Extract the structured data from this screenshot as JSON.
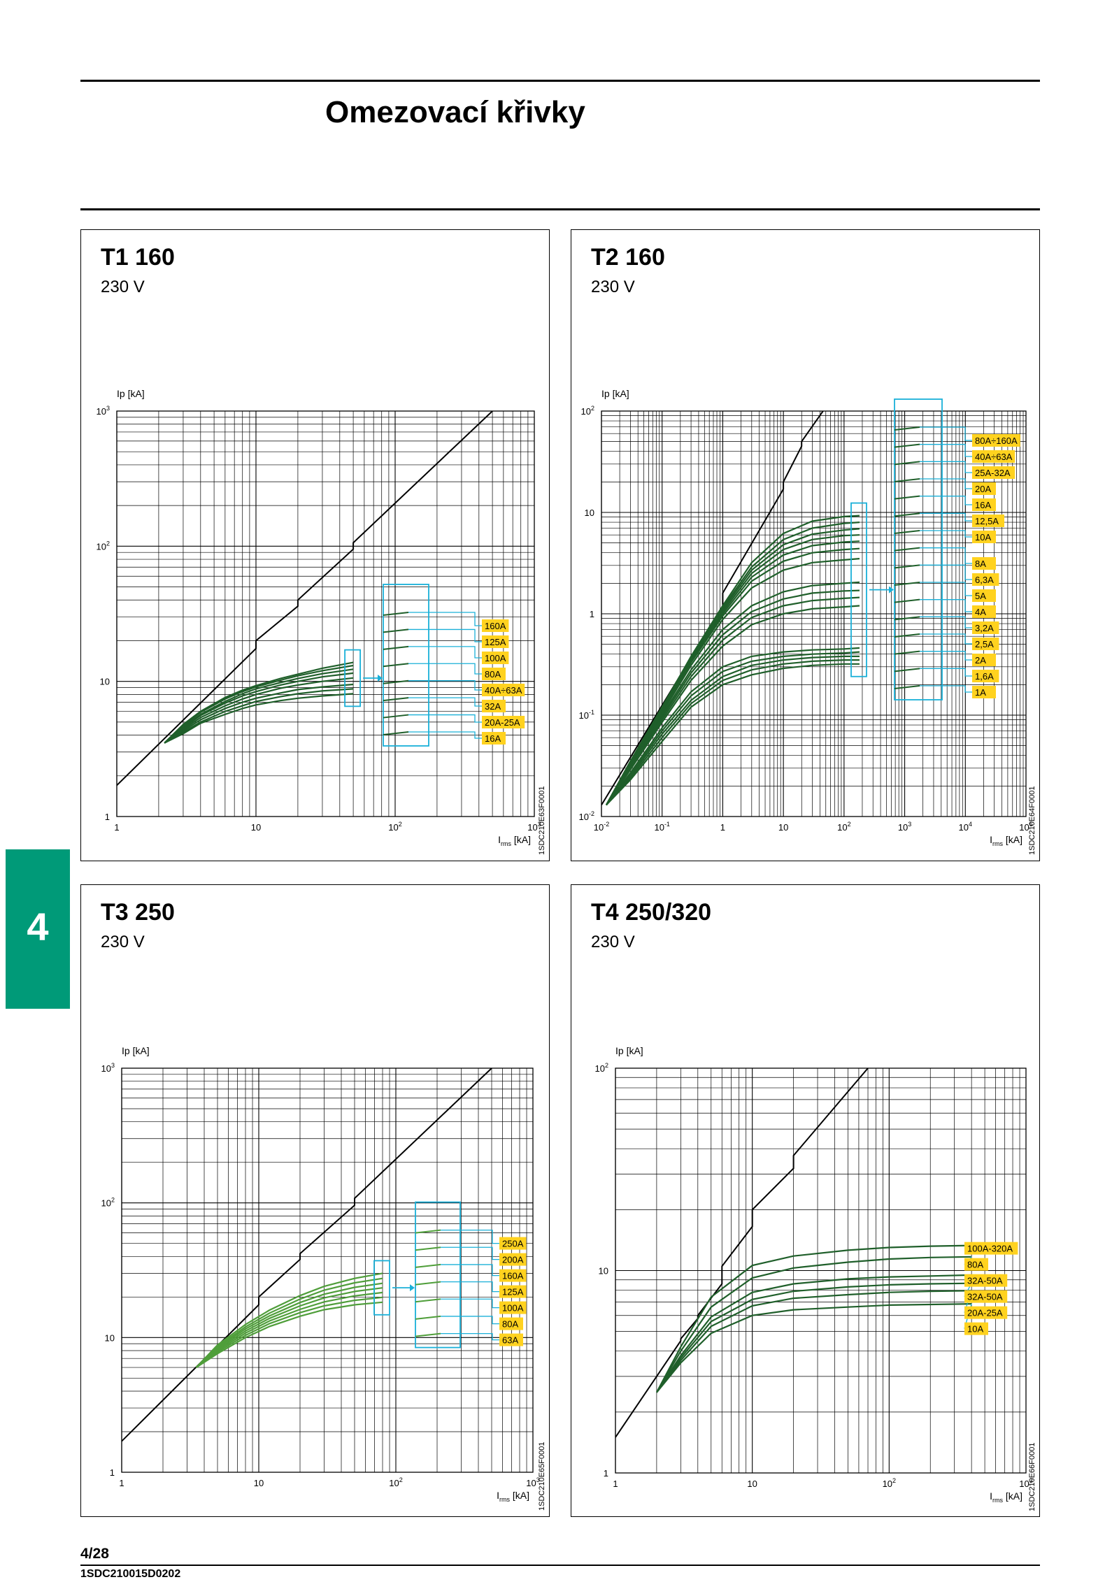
{
  "page": {
    "title": "Omezovací křivky",
    "side_tab": "4",
    "page_number": "4/28",
    "doc_code": "1SDC210015D0202"
  },
  "colors": {
    "tab": "#009a78",
    "curve_dark": "#1f5f2a",
    "curve_light": "#4f9e3a",
    "cyan": "#1ab0d8",
    "label_bg": "#ffd21f",
    "grid": "#000000"
  },
  "chart_data": [
    {
      "type": "line",
      "title": "T1 160",
      "subtitle": "230 V",
      "ylabel": "Ip [kA]",
      "xlabel_main": "I",
      "xlabel_sub": "rms",
      "xlabel_unit": " [kA]",
      "xscale": "log",
      "yscale": "log",
      "xlim": [
        1,
        1000
      ],
      "ylim": [
        1,
        1000
      ],
      "xticks": [
        {
          "v": 1,
          "b": "1"
        },
        {
          "v": 10,
          "b": "10"
        },
        {
          "v": 100,
          "b": "10",
          "e": "2"
        },
        {
          "v": 1000,
          "b": "10",
          "e": "3"
        }
      ],
      "yticks": [
        {
          "v": 1,
          "b": "1"
        },
        {
          "v": 10,
          "b": "10"
        },
        {
          "v": 100,
          "b": "10",
          "e": "2"
        },
        {
          "v": 1000,
          "b": "10",
          "e": "3"
        }
      ],
      "image_code": "1SDC210E63F0001",
      "limit_line": [
        [
          1,
          1.7
        ],
        [
          10,
          17.5
        ],
        [
          10,
          20
        ],
        [
          20,
          36
        ],
        [
          20,
          40
        ],
        [
          50,
          95
        ],
        [
          50,
          106
        ],
        [
          500,
          1000
        ]
      ],
      "curve_x": [
        2.2,
        3,
        4,
        6,
        8,
        10,
        15,
        20,
        30,
        50
      ],
      "curve_start": 3.5,
      "series": [
        {
          "name": "160A",
          "values": [
            3.5,
            4.8,
            6.0,
            7.6,
            8.6,
            9.3,
            10.5,
            11.3,
            12.5,
            13.8
          ],
          "color": "dark"
        },
        {
          "name": "125A",
          "values": [
            3.5,
            4.7,
            5.9,
            7.4,
            8.4,
            9.1,
            10.2,
            11.0,
            12.0,
            13.1
          ],
          "color": "dark"
        },
        {
          "name": "100A",
          "values": [
            3.5,
            4.6,
            5.7,
            7.1,
            8.1,
            8.8,
            9.8,
            10.5,
            11.4,
            12.3
          ],
          "color": "dark"
        },
        {
          "name": "80A",
          "values": [
            3.5,
            4.5,
            5.6,
            6.9,
            7.8,
            8.4,
            9.4,
            10.0,
            10.8,
            11.5
          ],
          "color": "dark"
        },
        {
          "name": "40A÷63A",
          "values": [
            3.5,
            4.4,
            5.4,
            6.6,
            7.4,
            8.0,
            8.9,
            9.4,
            10.0,
            10.6
          ],
          "color": "dark"
        },
        {
          "name": "32A",
          "values": [
            3.5,
            4.3,
            5.2,
            6.3,
            7.0,
            7.5,
            8.2,
            8.7,
            9.1,
            9.5
          ],
          "color": "dark"
        },
        {
          "name": "20A-25A",
          "values": [
            3.5,
            4.2,
            5.0,
            6.0,
            6.6,
            7.1,
            7.7,
            8.1,
            8.5,
            8.8
          ],
          "color": "dark"
        },
        {
          "name": "16A",
          "values": [
            3.5,
            4.1,
            4.9,
            5.7,
            6.3,
            6.7,
            7.2,
            7.5,
            7.8,
            8.1
          ],
          "color": "dark"
        }
      ]
    },
    {
      "type": "line",
      "title": "T2 160",
      "subtitle": "230 V",
      "ylabel": "Ip [kA]",
      "xlabel_main": "I",
      "xlabel_sub": "rms",
      "xlabel_unit": " [kA]",
      "xscale": "log",
      "yscale": "log",
      "xlim": [
        0.01,
        100000
      ],
      "ylim": [
        0.01,
        100
      ],
      "xticks": [
        {
          "v": 0.01,
          "b": "10",
          "e": "-2"
        },
        {
          "v": 0.1,
          "b": "10",
          "e": "-1"
        },
        {
          "v": 1,
          "b": "1"
        },
        {
          "v": 10,
          "b": "10"
        },
        {
          "v": 100,
          "b": "10",
          "e": "2"
        },
        {
          "v": 1000,
          "b": "10",
          "e": "3"
        },
        {
          "v": 10000,
          "b": "10",
          "e": "4"
        },
        {
          "v": 100000,
          "b": "10",
          "e": "5"
        }
      ],
      "yticks": [
        {
          "v": 0.01,
          "b": "10",
          "e": "-2"
        },
        {
          "v": 0.1,
          "b": "10",
          "e": "-1"
        },
        {
          "v": 1,
          "b": "1"
        },
        {
          "v": 10,
          "b": "10"
        },
        {
          "v": 100,
          "b": "10",
          "e": "2"
        }
      ],
      "image_code": "1SDC210E64F0001",
      "limit_line": [
        [
          0.01,
          0.013
        ],
        [
          1,
          1.2
        ],
        [
          1,
          1.6
        ],
        [
          10,
          17
        ],
        [
          10,
          20
        ],
        [
          20,
          45
        ],
        [
          20,
          50
        ],
        [
          45,
          100
        ]
      ],
      "curve_x": [
        0.012,
        0.03,
        0.1,
        0.3,
        1,
        3,
        10,
        30,
        100,
        180
      ],
      "curve_start": 0.013,
      "series": [
        {
          "name": "80A÷160A",
          "values": [
            0.013,
            0.035,
            0.12,
            0.38,
            1.2,
            3.2,
            6.2,
            8.2,
            9.1,
            9.3
          ],
          "color": "dark"
        },
        {
          "name": "40A÷63A",
          "values": [
            0.013,
            0.035,
            0.12,
            0.37,
            1.15,
            2.9,
            5.4,
            7.0,
            7.8,
            8.0
          ],
          "color": "dark"
        },
        {
          "name": "25A-32A",
          "values": [
            0.013,
            0.035,
            0.12,
            0.36,
            1.1,
            2.7,
            4.8,
            6.1,
            6.7,
            6.9
          ],
          "color": "dark"
        },
        {
          "name": "20A",
          "values": [
            0.013,
            0.034,
            0.115,
            0.35,
            1.05,
            2.5,
            4.3,
            5.4,
            5.9,
            6.0
          ],
          "color": "dark"
        },
        {
          "name": "16A",
          "values": [
            0.013,
            0.034,
            0.11,
            0.34,
            1.0,
            2.3,
            3.8,
            4.7,
            5.1,
            5.2
          ],
          "color": "dark"
        },
        {
          "name": "12,5A",
          "values": [
            0.013,
            0.033,
            0.11,
            0.33,
            0.95,
            2.1,
            3.3,
            4.0,
            4.3,
            4.4
          ],
          "color": "dark"
        },
        {
          "name": "10A",
          "values": [
            0.013,
            0.033,
            0.105,
            0.31,
            0.88,
            1.8,
            2.7,
            3.2,
            3.4,
            3.5
          ],
          "color": "dark"
        },
        {
          "name": "8A",
          "values": [
            0.013,
            0.032,
            0.1,
            0.28,
            0.7,
            1.2,
            1.65,
            1.9,
            2.0,
            2.05
          ],
          "color": "dark"
        },
        {
          "name": "6,3A",
          "values": [
            0.013,
            0.031,
            0.095,
            0.26,
            0.62,
            1.05,
            1.4,
            1.6,
            1.68,
            1.7
          ],
          "color": "dark"
        },
        {
          "name": "5A",
          "values": [
            0.013,
            0.03,
            0.09,
            0.24,
            0.55,
            0.92,
            1.2,
            1.35,
            1.42,
            1.45
          ],
          "color": "dark"
        },
        {
          "name": "4A",
          "values": [
            0.013,
            0.029,
            0.085,
            0.22,
            0.48,
            0.78,
            1.0,
            1.12,
            1.17,
            1.2
          ],
          "color": "dark"
        },
        {
          "name": "3,2A",
          "values": [
            0.013,
            0.027,
            0.075,
            0.17,
            0.3,
            0.38,
            0.42,
            0.44,
            0.45,
            0.46
          ],
          "color": "dark"
        },
        {
          "name": "2,5A",
          "values": [
            0.013,
            0.026,
            0.07,
            0.155,
            0.27,
            0.34,
            0.38,
            0.4,
            0.41,
            0.42
          ],
          "color": "dark"
        },
        {
          "name": "2A",
          "values": [
            0.013,
            0.025,
            0.065,
            0.14,
            0.24,
            0.31,
            0.35,
            0.37,
            0.38,
            0.38
          ],
          "color": "dark"
        },
        {
          "name": "1,6A",
          "values": [
            0.013,
            0.024,
            0.06,
            0.13,
            0.22,
            0.28,
            0.32,
            0.34,
            0.35,
            0.35
          ],
          "color": "dark"
        },
        {
          "name": "1A",
          "values": [
            0.013,
            0.023,
            0.055,
            0.12,
            0.2,
            0.25,
            0.29,
            0.31,
            0.32,
            0.32
          ],
          "color": "dark"
        }
      ]
    },
    {
      "type": "line",
      "title": "T3 250",
      "subtitle": "230 V",
      "ylabel": "Ip [kA]",
      "xlabel_main": "I",
      "xlabel_sub": "rms",
      "xlabel_unit": " [kA]",
      "xscale": "log",
      "yscale": "log",
      "xlim": [
        1,
        1000
      ],
      "ylim": [
        1,
        1000
      ],
      "xticks": [
        {
          "v": 1,
          "b": "1"
        },
        {
          "v": 10,
          "b": "10"
        },
        {
          "v": 100,
          "b": "10",
          "e": "2"
        },
        {
          "v": 1000,
          "b": "10",
          "e": "3"
        }
      ],
      "yticks": [
        {
          "v": 1,
          "b": "1"
        },
        {
          "v": 10,
          "b": "10"
        },
        {
          "v": 100,
          "b": "10",
          "e": "2"
        },
        {
          "v": 1000,
          "b": "10",
          "e": "3"
        }
      ],
      "image_code": "1SDC210E65F0001",
      "limit_line": [
        [
          1,
          1.7
        ],
        [
          10,
          17.5
        ],
        [
          10,
          20
        ],
        [
          20,
          38
        ],
        [
          20,
          42
        ],
        [
          50,
          96
        ],
        [
          50,
          108
        ],
        [
          500,
          1000
        ]
      ],
      "curve_x": [
        3.5,
        5,
        8,
        12,
        20,
        30,
        50,
        80
      ],
      "curve_start": 6,
      "series": [
        {
          "name": "250A",
          "values": [
            6,
            8.8,
            12.5,
            16,
            20.5,
            24,
            27.5,
            30
          ],
          "color": "light"
        },
        {
          "name": "200A",
          "values": [
            6,
            8.6,
            12,
            15.2,
            19.3,
            22.5,
            25.5,
            27.5
          ],
          "color": "light"
        },
        {
          "name": "160A",
          "values": [
            6,
            8.4,
            11.6,
            14.5,
            18.2,
            21,
            23.6,
            25.3
          ],
          "color": "light"
        },
        {
          "name": "125A",
          "values": [
            6,
            8.2,
            11.2,
            13.9,
            17.2,
            19.7,
            22,
            23.4
          ],
          "color": "light"
        },
        {
          "name": "100A",
          "values": [
            6,
            8.0,
            10.8,
            13.3,
            16.2,
            18.4,
            20.4,
            21.6
          ],
          "color": "light"
        },
        {
          "name": "80A",
          "values": [
            6,
            7.8,
            10.4,
            12.7,
            15.3,
            17.2,
            18.9,
            19.9
          ],
          "color": "light"
        },
        {
          "name": "63A",
          "values": [
            6,
            7.6,
            10.0,
            12.1,
            14.4,
            16.1,
            17.5,
            18.3
          ],
          "color": "light"
        }
      ]
    },
    {
      "type": "line",
      "title": "T4 250/320",
      "subtitle": "230 V",
      "ylabel": "Ip [kA]",
      "xlabel_main": "I",
      "xlabel_sub": "rms",
      "xlabel_unit": " [kA]",
      "xscale": "log",
      "yscale": "log",
      "xlim": [
        1,
        1000
      ],
      "ylim": [
        1,
        100
      ],
      "xticks": [
        {
          "v": 1,
          "b": "1"
        },
        {
          "v": 10,
          "b": "10"
        },
        {
          "v": 100,
          "b": "10",
          "e": "2"
        },
        {
          "v": 1000,
          "b": "10",
          "e": "3"
        }
      ],
      "yticks": [
        {
          "v": 1,
          "b": "1"
        },
        {
          "v": 10,
          "b": "10"
        },
        {
          "v": 100,
          "b": "10",
          "e": "2"
        }
      ],
      "image_code": "1SDC210E66F0001",
      "limit_line": [
        [
          1,
          1.5
        ],
        [
          3,
          4.5
        ],
        [
          3,
          4.6
        ],
        [
          4,
          5.8
        ],
        [
          4,
          6
        ],
        [
          6,
          8.6
        ],
        [
          6,
          10.5
        ],
        [
          10,
          16.5
        ],
        [
          10,
          20
        ],
        [
          20,
          32
        ],
        [
          20,
          37
        ],
        [
          70,
          100
        ]
      ],
      "curve_x": [
        2,
        3,
        5,
        10,
        20,
        50,
        100,
        200,
        400
      ],
      "curve_start": 2.5,
      "series": [
        {
          "name": "100A-320A",
          "values": [
            2.5,
            4.2,
            7.4,
            10.6,
            11.8,
            12.6,
            13.0,
            13.2,
            13.3
          ],
          "color": "dark"
        },
        {
          "name": "80A",
          "values": [
            2.5,
            4.0,
            6.6,
            9.2,
            10.3,
            11.0,
            11.4,
            11.6,
            11.7
          ],
          "color": "dark"
        },
        {
          "name": "32A-50A",
          "values": [
            2.5,
            3.8,
            5.9,
            7.8,
            8.6,
            9.1,
            9.3,
            9.4,
            9.5
          ],
          "color": "dark"
        },
        {
          "name": "32A-50A",
          "values": [
            2.5,
            3.7,
            5.6,
            7.2,
            7.9,
            8.3,
            8.5,
            8.6,
            8.65
          ],
          "color": "dark"
        },
        {
          "name": "20A-25A",
          "values": [
            2.5,
            3.6,
            5.3,
            6.7,
            7.3,
            7.6,
            7.8,
            7.9,
            7.95
          ],
          "color": "dark"
        },
        {
          "name": "10A",
          "values": [
            2.5,
            3.5,
            4.9,
            6.0,
            6.4,
            6.6,
            6.75,
            6.8,
            6.85
          ],
          "color": "dark"
        }
      ]
    }
  ]
}
